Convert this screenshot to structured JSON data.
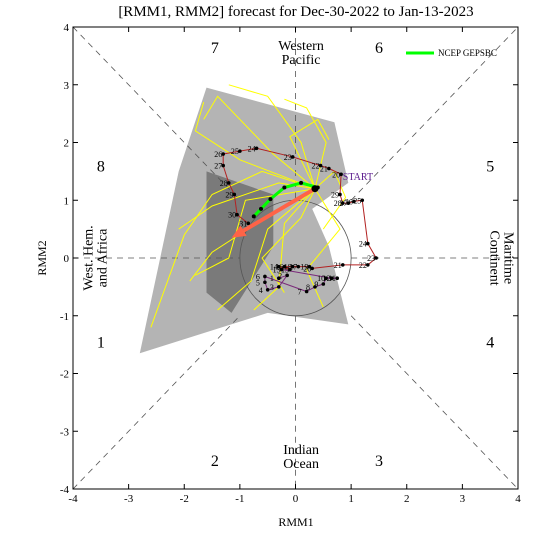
{
  "chart_data": {
    "type": "line",
    "title": "[RMM1, RMM2] forecast for Dec-30-2022 to Jan-13-2023",
    "xlabel": "RMM1",
    "ylabel": "RMM2",
    "xlim": [
      -4,
      4
    ],
    "ylim": [
      -4,
      4
    ],
    "xticks": [
      "-4",
      "-3",
      "-2",
      "-1",
      "0",
      "1",
      "2",
      "3",
      "4"
    ],
    "yticks": [
      "-4",
      "-3",
      "-2",
      "-1",
      "0",
      "1",
      "2",
      "3",
      "4"
    ],
    "grid": false,
    "legend": {
      "position": "top-right",
      "entries": [
        {
          "name": "NCEP GEPSBC",
          "color": "#00ff00"
        }
      ]
    },
    "phases": [
      {
        "label": "1",
        "x": -3.5,
        "y": -1.55
      },
      {
        "label": "2",
        "x": -1.45,
        "y": -3.6
      },
      {
        "label": "3",
        "x": 1.5,
        "y": -3.6
      },
      {
        "label": "4",
        "x": 3.5,
        "y": -1.55
      },
      {
        "label": "5",
        "x": 3.5,
        "y": 1.5
      },
      {
        "label": "6",
        "x": 1.5,
        "y": 3.55
      },
      {
        "label": "7",
        "x": -1.45,
        "y": 3.55
      },
      {
        "label": "8",
        "x": -3.5,
        "y": 1.5
      }
    ],
    "regions": [
      {
        "lines": [
          "Western",
          "Pacific"
        ],
        "x": 0.1,
        "y": 3.55,
        "rotate": 0
      },
      {
        "lines": [
          "Indian",
          "Ocean"
        ],
        "x": 0.1,
        "y": -3.45,
        "rotate": 0
      },
      {
        "lines": [
          "West. Hem.",
          "and Africa"
        ],
        "x": -3.6,
        "y": 0.0,
        "rotate": -90
      },
      {
        "lines": [
          "Maritime",
          "Continent"
        ],
        "x": 3.7,
        "y": 0.0,
        "rotate": 90
      }
    ],
    "annotations": [
      {
        "text": "START",
        "x": 0.85,
        "y": 1.35
      }
    ],
    "observed": {
      "name": "Observed",
      "color": "#000000",
      "segment_colors": [
        "#7a2a7a",
        "#b22222"
      ],
      "points": [
        {
          "d": "1",
          "x": -0.3,
          "y": -0.35
        },
        {
          "d": "2",
          "x": -0.15,
          "y": -0.3
        },
        {
          "d": "3",
          "x": -0.3,
          "y": -0.5
        },
        {
          "d": "4",
          "x": -0.5,
          "y": -0.55
        },
        {
          "d": "5",
          "x": -0.55,
          "y": -0.42
        },
        {
          "d": "6",
          "x": -0.55,
          "y": -0.32
        },
        {
          "d": "7",
          "x": 0.2,
          "y": -0.58
        },
        {
          "d": "8",
          "x": 0.35,
          "y": -0.5
        },
        {
          "d": "9",
          "x": 0.5,
          "y": -0.45
        },
        {
          "d": "10",
          "x": 0.55,
          "y": -0.35
        },
        {
          "d": "11",
          "x": 0.75,
          "y": -0.35
        },
        {
          "d": "12",
          "x": 0.65,
          "y": -0.35
        },
        {
          "d": "13",
          "x": -0.25,
          "y": -0.2
        },
        {
          "d": "14",
          "x": -0.3,
          "y": -0.15
        },
        {
          "d": "15",
          "x": -0.1,
          "y": -0.2
        },
        {
          "d": "16",
          "x": -0.2,
          "y": -0.15
        },
        {
          "d": "17",
          "x": 0.05,
          "y": -0.15
        },
        {
          "d": "18",
          "x": -0.05,
          "y": -0.15
        },
        {
          "d": "19",
          "x": 0.25,
          "y": -0.15
        },
        {
          "d": "20",
          "x": 0.3,
          "y": -0.18
        },
        {
          "d": "21",
          "x": 0.85,
          "y": -0.12
        },
        {
          "d": "22",
          "x": 1.3,
          "y": -0.12
        },
        {
          "d": "23",
          "x": 1.45,
          "y": 0.0
        },
        {
          "d": "24",
          "x": 1.3,
          "y": 0.25
        },
        {
          "d": "25",
          "x": 1.2,
          "y": 1.0
        },
        {
          "d": "26",
          "x": 1.05,
          "y": 0.98
        },
        {
          "d": "27",
          "x": 0.95,
          "y": 0.95
        },
        {
          "d": "28",
          "x": 0.85,
          "y": 0.95
        },
        {
          "d": "29",
          "x": 0.8,
          "y": 1.1
        },
        {
          "d": "20",
          "x": 0.82,
          "y": 1.45
        },
        {
          "d": "21",
          "x": 0.6,
          "y": 1.55
        },
        {
          "d": "22",
          "x": 0.45,
          "y": 1.6
        },
        {
          "d": "23",
          "x": -0.05,
          "y": 1.75
        },
        {
          "d": "24",
          "x": -0.7,
          "y": 1.9
        },
        {
          "d": "25",
          "x": -1.0,
          "y": 1.85
        },
        {
          "d": "26",
          "x": -1.3,
          "y": 1.8
        },
        {
          "d": "27",
          "x": -1.3,
          "y": 1.6
        },
        {
          "d": "28",
          "x": -1.2,
          "y": 1.3
        },
        {
          "d": "29",
          "x": -1.1,
          "y": 1.1
        },
        {
          "d": "30",
          "x": -1.05,
          "y": 0.75
        },
        {
          "d": "31",
          "x": -0.85,
          "y": 0.6
        }
      ]
    },
    "ensemble_mean": {
      "name": "NCEP GEPSBC",
      "color": "#00ff00",
      "points": [
        [
          0.4,
          1.22
        ],
        [
          0.1,
          1.3
        ],
        [
          -0.2,
          1.22
        ],
        [
          -0.45,
          1.02
        ],
        [
          -0.62,
          0.85
        ],
        [
          -0.75,
          0.72
        ]
      ]
    },
    "mean_arrow": {
      "color": "#ff6347",
      "from": [
        0.35,
        1.2
      ],
      "to": [
        -1.15,
        0.35
      ]
    },
    "spread": {
      "outer_color": "#b4b4b4",
      "inner_color": "#7a7a7a",
      "outer": [
        [
          -2.8,
          -1.65
        ],
        [
          -2.1,
          1.5
        ],
        [
          -1.6,
          2.95
        ],
        [
          0.7,
          2.35
        ],
        [
          0.95,
          1.3
        ],
        [
          0.3,
          0.85
        ],
        [
          0.6,
          0.2
        ],
        [
          0.95,
          -1.15
        ],
        [
          -0.5,
          -0.95
        ]
      ],
      "inner": [
        [
          -1.6,
          -0.6
        ],
        [
          -1.6,
          1.5
        ],
        [
          -0.4,
          1.1
        ],
        [
          -0.4,
          0.2
        ],
        [
          -1.15,
          -0.95
        ]
      ]
    },
    "members": {
      "color": "#ffff00",
      "lines": [
        [
          [
            0.35,
            1.2
          ],
          [
            -0.4,
            1.8
          ],
          [
            -1.4,
            2.8
          ],
          [
            -1.65,
            2.4
          ]
        ],
        [
          [
            0.35,
            1.2
          ],
          [
            0.1,
            2.0
          ],
          [
            -0.5,
            2.8
          ],
          [
            -1.2,
            3.0
          ]
        ],
        [
          [
            0.35,
            1.2
          ],
          [
            0.55,
            2.0
          ],
          [
            0.2,
            2.6
          ],
          [
            -0.2,
            2.75
          ]
        ],
        [
          [
            0.35,
            1.2
          ],
          [
            -0.6,
            1.5
          ],
          [
            -1.5,
            1.1
          ],
          [
            -2.0,
            0.4
          ],
          [
            -2.6,
            -1.2
          ]
        ],
        [
          [
            0.35,
            1.2
          ],
          [
            -0.7,
            0.6
          ],
          [
            -1.5,
            0.1
          ],
          [
            -1.9,
            -0.4
          ]
        ],
        [
          [
            0.35,
            1.2
          ],
          [
            -0.5,
            0.5
          ],
          [
            -0.8,
            -0.4
          ],
          [
            -1.4,
            -0.9
          ]
        ],
        [
          [
            0.35,
            1.2
          ],
          [
            0.8,
            0.5
          ],
          [
            0.2,
            -0.2
          ],
          [
            0.5,
            -0.85
          ]
        ],
        [
          [
            0.35,
            1.2
          ],
          [
            -0.2,
            0.6
          ],
          [
            -0.3,
            -0.5
          ],
          [
            -0.75,
            -0.9
          ]
        ],
        [
          [
            0.35,
            1.2
          ],
          [
            -1.0,
            1.7
          ],
          [
            -1.8,
            2.2
          ],
          [
            -1.65,
            2.7
          ]
        ],
        [
          [
            0.35,
            1.2
          ],
          [
            -0.9,
            1.0
          ],
          [
            -1.2,
            0.0
          ],
          [
            -1.8,
            -0.3
          ]
        ],
        [
          [
            0.35,
            1.2
          ],
          [
            0.7,
            1.5
          ],
          [
            0.9,
            1.05
          ],
          [
            0.5,
            0.5
          ]
        ],
        [
          [
            0.35,
            1.2
          ],
          [
            -0.3,
            1.3
          ],
          [
            -1.5,
            0.9
          ],
          [
            -2.1,
            0.5
          ]
        ],
        [
          [
            0.35,
            1.2
          ],
          [
            0.1,
            0.7
          ],
          [
            -0.6,
            0.0
          ],
          [
            -0.2,
            -0.6
          ]
        ],
        [
          [
            0.35,
            1.2
          ],
          [
            -0.1,
            2.1
          ],
          [
            0.4,
            2.4
          ],
          [
            0.6,
            2.05
          ]
        ]
      ]
    },
    "unit_circle_radius": 1
  }
}
